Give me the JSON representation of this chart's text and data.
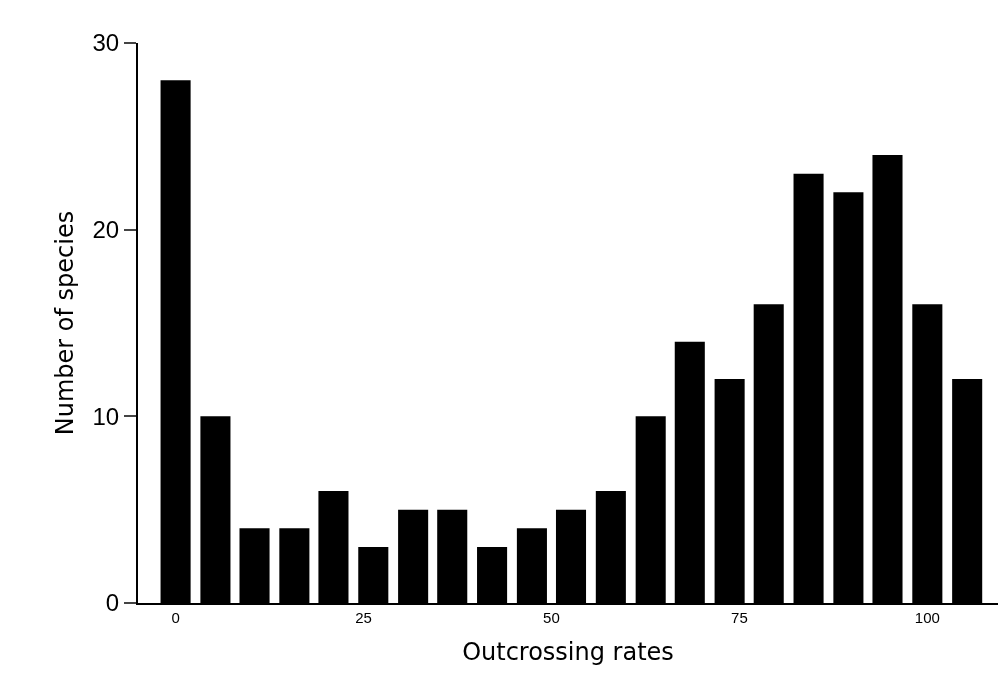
{
  "chart_data": {
    "type": "bar",
    "xlabel": "Outcrossing rates",
    "ylabel": "Number of species",
    "x": [
      0,
      5.3,
      10.5,
      15.8,
      21,
      26.3,
      31.6,
      36.8,
      42.1,
      47.4,
      52.6,
      57.9,
      63.2,
      68.4,
      73.7,
      78.9,
      84.2,
      89.5,
      94.7,
      100,
      105.3
    ],
    "values": [
      28,
      10,
      4,
      4,
      6,
      3,
      5,
      5,
      3,
      4,
      5,
      6,
      10,
      14,
      12,
      16,
      23,
      22,
      24,
      16,
      12
    ],
    "color": "#000000",
    "xlim": [
      -5,
      109.4
    ],
    "xticks": [
      0,
      25,
      50,
      75,
      100
    ],
    "ylim": [
      0,
      30
    ],
    "yticks": [
      0,
      10,
      20,
      30
    ]
  }
}
